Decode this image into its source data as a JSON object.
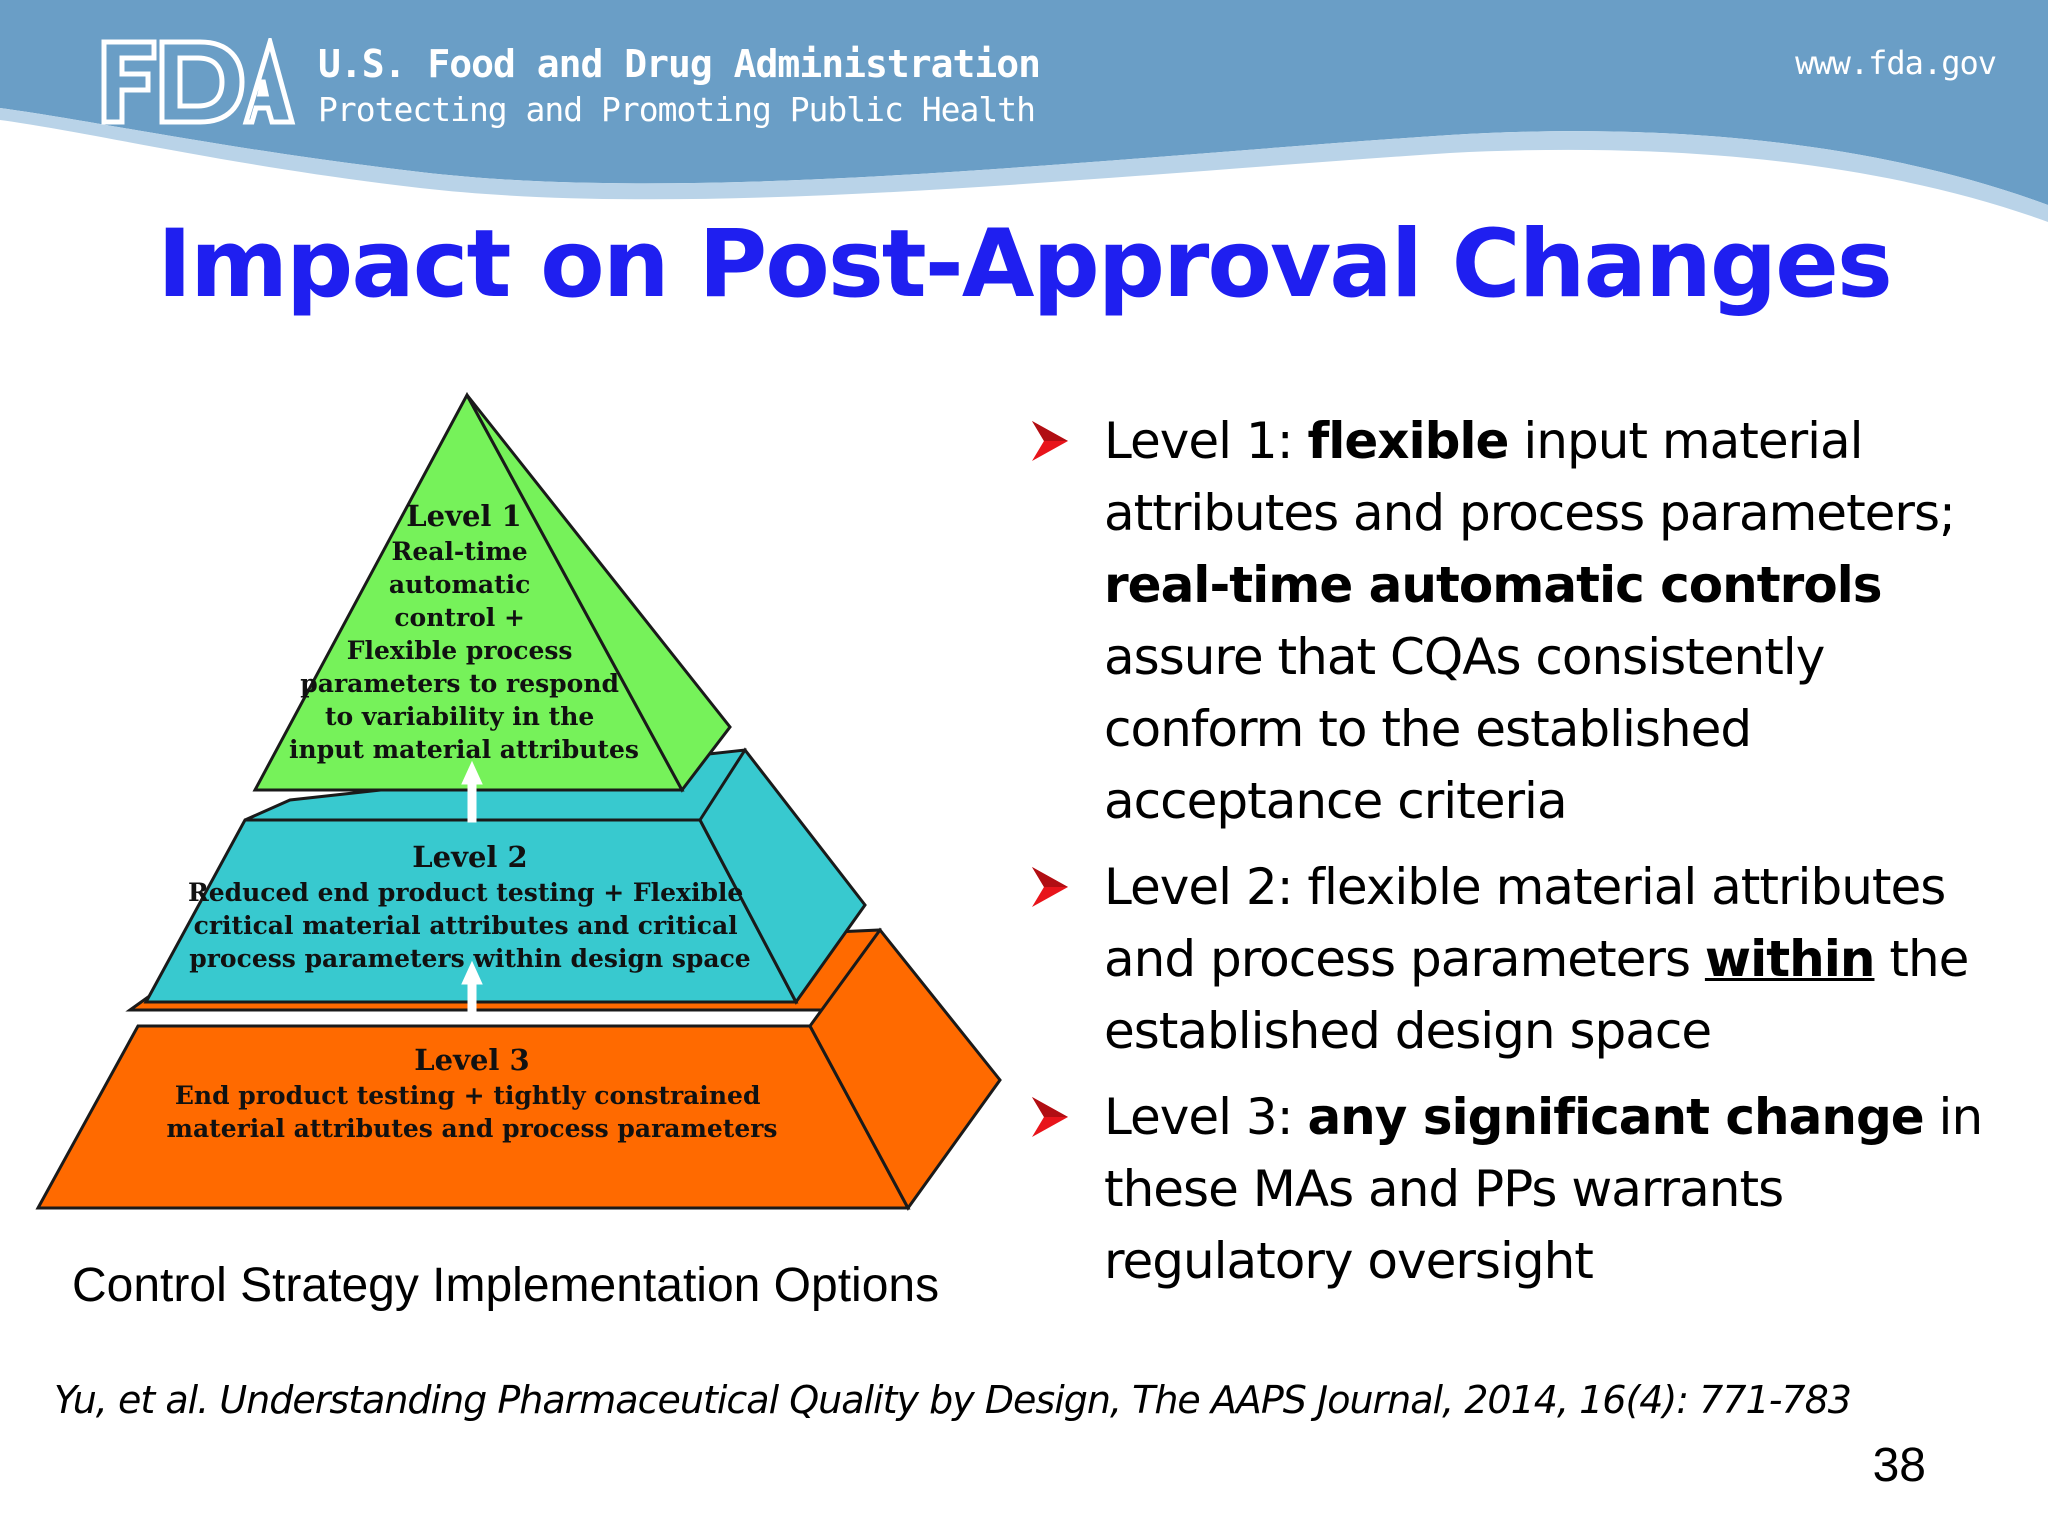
{
  "header": {
    "agency_name": "U.S. Food and Drug Administration",
    "tagline": "Protecting and Promoting Public Health",
    "url": "www.fda.gov",
    "logo_icon": "fda-logo-icon",
    "background_color": "#6a9ec6"
  },
  "title": "Impact on Post-Approval Changes",
  "title_color": "#1f1ff0",
  "pyramid": {
    "level1": {
      "title": "Level 1",
      "lines": [
        "Real-time",
        "automatic",
        "control +",
        "Flexible process",
        "parameters to respond",
        "to variability in the",
        "input material attributes"
      ],
      "color": "#76f25a"
    },
    "level2": {
      "title": "Level 2",
      "lines": [
        "Reduced end product testing + Flexible",
        "critical material attributes and critical",
        "process parameters within design space"
      ],
      "color": "#38c9cf"
    },
    "level3": {
      "title": "Level 3",
      "lines": [
        "End product testing + tightly constrained",
        "material attributes and process parameters"
      ],
      "color": "#ff6a00"
    }
  },
  "diagram_caption": "Control Strategy Implementation Options",
  "bullet_icon": "red-arrow-bullet-icon",
  "bullets": [
    {
      "pre": "Level 1: ",
      "bold1": "flexible",
      "mid": " input material attributes and process parameters; ",
      "bold2": "real-time automatic controls",
      "post": " assure that CQAs consistently conform to the established acceptance criteria"
    },
    {
      "pre": "Level 2: flexible material attributes and process parameters ",
      "underline": "within",
      "post": " the established design space"
    },
    {
      "pre": "Level 3: ",
      "bold": "any significant change",
      "post": " in these MAs and PPs warrants regulatory oversight"
    }
  ],
  "citation": "Yu, et al. Understanding Pharmaceutical Quality by Design, The AAPS Journal, 2014, 16(4): 771-783",
  "slide_number": "38"
}
